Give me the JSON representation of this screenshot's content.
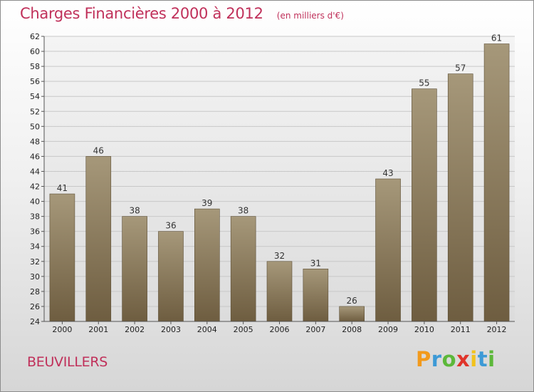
{
  "title": "Charges Financières 2000 à 2012",
  "subtitle": "(en milliers d'€)",
  "place": "BEUVILLERS",
  "logo": {
    "text": "Proxiti",
    "colors": [
      "#f29a1c",
      "#3d9ad6",
      "#5cb83a",
      "#e0352b",
      "#f2c21c",
      "#3d9ad6",
      "#5cb83a"
    ]
  },
  "colors": {
    "title": "#c0305a",
    "bar_top": "#a6987a",
    "bar_bottom": "#6e5d40"
  },
  "chart_data": {
    "type": "bar",
    "title": "Charges Financières 2000 à 2012",
    "subtitle": "(en milliers d'€)",
    "categories": [
      "2000",
      "2001",
      "2002",
      "2003",
      "2004",
      "2005",
      "2006",
      "2007",
      "2008",
      "2009",
      "2010",
      "2011",
      "2012"
    ],
    "values": [
      41,
      46,
      38,
      36,
      39,
      38,
      32,
      31,
      26,
      43,
      55,
      57,
      61
    ],
    "ylim": [
      24,
      62
    ],
    "yticks": [
      24,
      26,
      28,
      30,
      32,
      34,
      36,
      38,
      40,
      42,
      44,
      46,
      48,
      50,
      52,
      54,
      56,
      58,
      60,
      62
    ],
    "grid": true,
    "xlabel": "",
    "ylabel": ""
  }
}
